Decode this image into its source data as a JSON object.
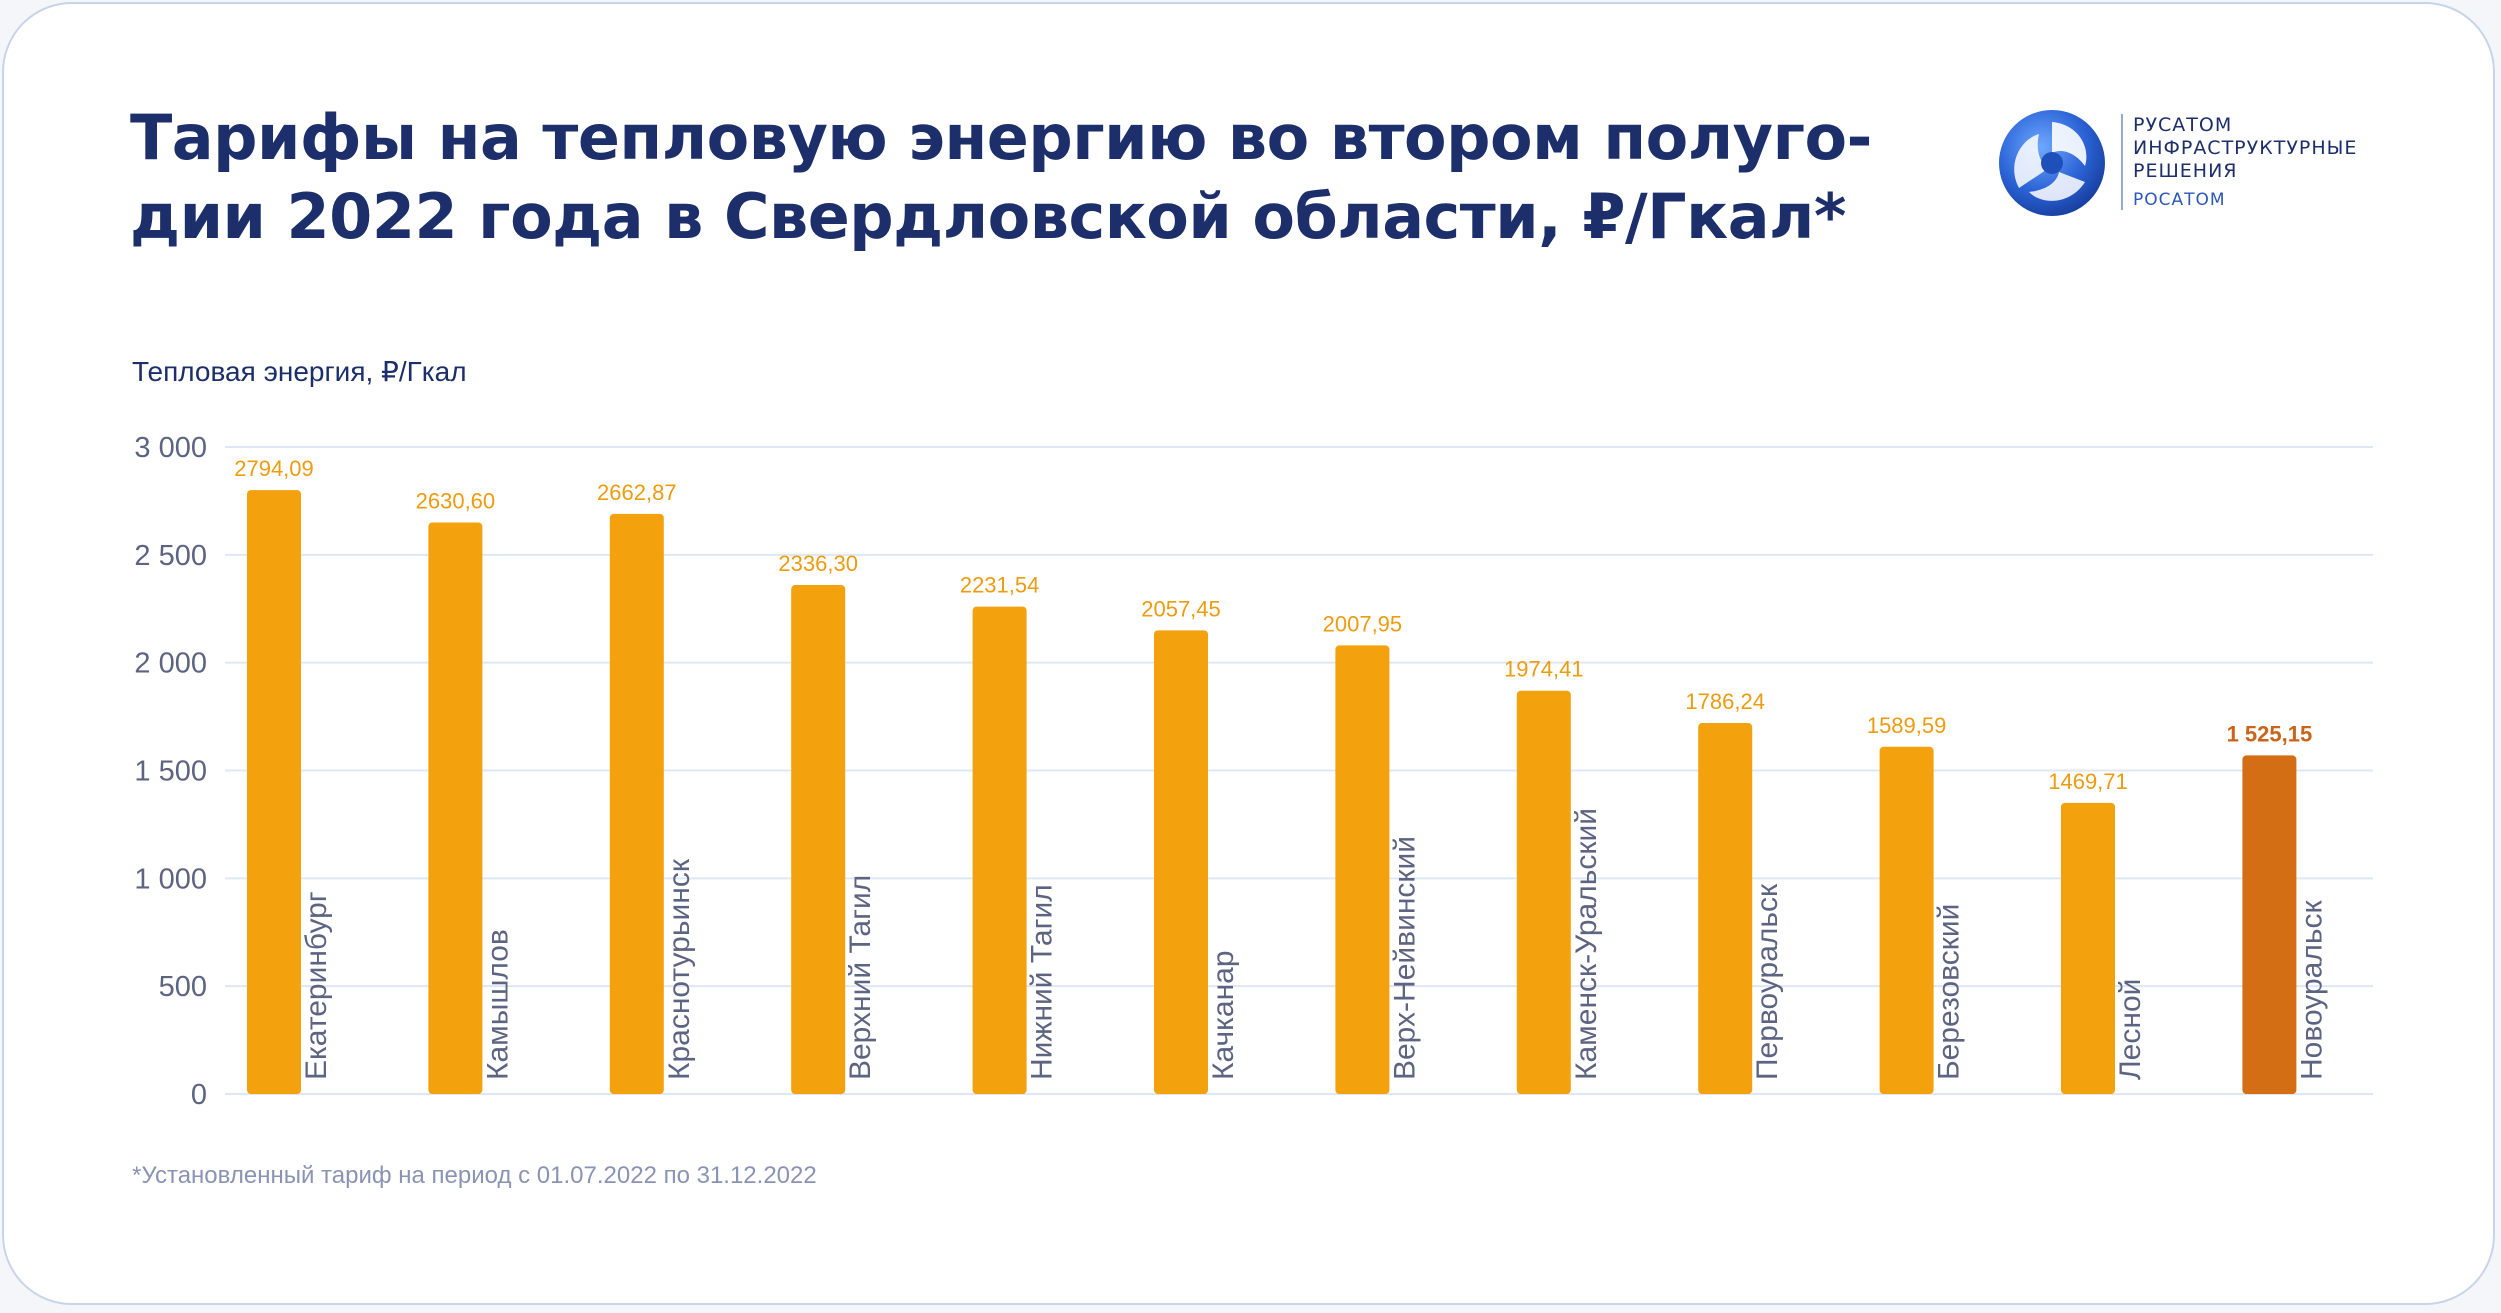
{
  "title": "Тарифы на тепловую энергию во втором полуго-дии 2022 года в Свердловской области, ₽/Гкал*",
  "logo": {
    "line1": "РУСАТОМ",
    "line2": "ИНФРАСТРУКТУРНЫЕ",
    "line3": "РЕШЕНИЯ",
    "sub": "РОСАТОМ"
  },
  "footnote": "*Установленный тариф на период с 01.07.2022 по 31.12.2022",
  "colors": {
    "bar": "#f3a10d",
    "bar_highlight": "#d36e14",
    "label_highlight": "#c9641a",
    "grid": "#dfe7f5",
    "title": "#1c2f6b"
  },
  "chart_data": {
    "type": "bar",
    "ylabel": "Тепловая энергия, ₽/Гкал",
    "ylim": [
      0,
      3000
    ],
    "yticks": [
      0,
      500,
      1000,
      1500,
      2000,
      2500,
      3000
    ],
    "ytick_labels": [
      "0",
      "500",
      "1 000",
      "1 500",
      "2 000",
      "2 500",
      "3 000"
    ],
    "grid": true,
    "categories": [
      "Екатеринбург",
      "Камышлов",
      "Краснотурьинск",
      "Верхний Тагил",
      "Нижний Тагил",
      "Качканар",
      "Верх-Нейвинский",
      "Каменск-Уральский",
      "Первоуральск",
      "Березовский",
      "Лесной",
      "Новоуральск"
    ],
    "values": [
      2794.09,
      2630.6,
      2662.87,
      2336.3,
      2231.54,
      2057.45,
      2007.95,
      1974.41,
      1786.24,
      1589.59,
      1469.71,
      1525.15
    ],
    "bar_heights_shown": [
      2800,
      2650,
      2690,
      2360,
      2260,
      2150,
      2080,
      1870,
      1720,
      1610,
      1350,
      1570
    ],
    "value_labels": [
      "2794,09",
      "2630,60",
      "2662,87",
      "2336,30",
      "2231,54",
      "2057,45",
      "2007,95",
      "1974,41",
      "1786,24",
      "1589,59",
      "1469,71",
      "1 525,15"
    ],
    "highlight_index": 11
  }
}
